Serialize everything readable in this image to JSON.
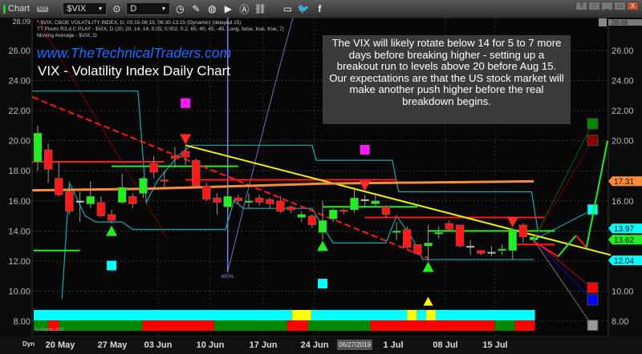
{
  "toolbar": {
    "title": "Chart",
    "badge": "MX",
    "symbol": "$VIX",
    "interval": "D",
    "icons": [
      "link-icon",
      "pencil-icon",
      "chart-style-icon",
      "play-icon",
      "alert-icon",
      "link-chain-icon",
      "chat-icon",
      "twitter-icon",
      "facebook-icon"
    ]
  },
  "window_buttons": [
    "?",
    "□",
    "_",
    "▭",
    "X"
  ],
  "legend": {
    "line1": "* $VIX, CBOE VOLATILITY INDEX, D, 00:15-06:15, 08:30-13:15 (Dynamic) (delayed 15)",
    "line2": "TT Pivots R3.d.C PLAY - $VIX, D (20, 20, 14, 14, 0.05, 0.002, 0.2, 65, 40, 45, -45, Long, false, true, true, 7)",
    "line3": "Moving Average - $VIX, D"
  },
  "website": "www.TheTechnicalTraders.com",
  "chart_title": "VIX - Volatility Index Daily Chart",
  "note": "The VIX will likely rotate below 14 for 5 to 7 more days before breaking higher - setting up a breakout run to levels above 20 before Aug 15.  Our expectations are that the US stock market will make another push higher before the real breakdown begins.",
  "copyright": "© eSignal, 2019",
  "time_axis": {
    "dyn_label": "Dyn",
    "cursor_date": "06/27/2019",
    "ticks": [
      "20 May",
      "27 May",
      "03 Jun",
      "10 Jun",
      "17 Jun",
      "24 Jun",
      "1 Jul",
      "08 Jul",
      "15 Jul"
    ]
  },
  "colors": {
    "up": "#22ee22",
    "down": "#ff1a1a",
    "trend_yellow": "#f2f200",
    "ma_orange": "#ff8c3a",
    "cyan": "#00ffff",
    "pivot_line": "#1fa9b0"
  },
  "chart_data": {
    "type": "candlestick",
    "ylim": [
      7.2,
      28.09
    ],
    "y_ticks": [
      8,
      10,
      12,
      14,
      16,
      18,
      20,
      22,
      24,
      26
    ],
    "y_tick_labels": [
      "8.00",
      "10.00",
      "12.00",
      "14.00",
      "16.00",
      "18.00",
      "20.00",
      "22.00",
      "24.00",
      "26.00"
    ],
    "top_price_label": "28.09",
    "ohlc": [
      [
        18.6,
        21.0,
        18.0,
        20.5
      ],
      [
        19.4,
        19.8,
        17.2,
        18.1
      ],
      [
        17.5,
        18.6,
        16.3,
        16.4
      ],
      [
        16.6,
        17.0,
        15.1,
        15.3
      ],
      [
        16.0,
        16.6,
        14.6,
        16.0
      ],
      [
        15.8,
        17.3,
        15.5,
        16.3
      ],
      [
        15.9,
        16.3,
        14.9,
        15.0
      ],
      [
        15.1,
        15.4,
        14.5,
        14.7
      ],
      [
        15.9,
        17.8,
        15.8,
        16.9
      ],
      [
        16.3,
        16.5,
        15.5,
        15.8
      ],
      [
        16.5,
        17.6,
        16.2,
        17.5
      ],
      [
        18.5,
        19.0,
        17.5,
        17.9
      ],
      [
        17.4,
        18.0,
        16.9,
        17.3
      ],
      [
        19.0,
        19.6,
        18.2,
        18.8
      ],
      [
        19.3,
        19.6,
        18.4,
        18.9
      ],
      [
        18.7,
        18.8,
        16.9,
        17.0
      ],
      [
        17.0,
        17.2,
        16.0,
        16.1
      ],
      [
        16.2,
        16.5,
        15.1,
        15.9
      ],
      [
        15.6,
        16.4,
        15.3,
        16.3
      ],
      [
        16.2,
        16.4,
        15.8,
        16.0
      ],
      [
        15.9,
        16.5,
        15.5,
        16.0
      ],
      [
        16.2,
        16.4,
        15.7,
        15.9
      ],
      [
        16.1,
        16.2,
        15.5,
        15.8
      ],
      [
        16.0,
        16.3,
        15.2,
        15.3
      ],
      [
        15.6,
        15.7,
        15.2,
        15.4
      ],
      [
        14.9,
        15.3,
        14.6,
        15.1
      ],
      [
        15.0,
        15.1,
        14.2,
        14.4
      ],
      [
        13.9,
        16.0,
        13.4,
        14.7
      ],
      [
        14.8,
        15.5,
        14.6,
        15.4
      ],
      [
        15.4,
        15.5,
        15.1,
        15.3
      ],
      [
        15.4,
        16.9,
        15.2,
        16.2
      ],
      [
        16.1,
        16.4,
        15.6,
        16.1
      ],
      [
        15.8,
        16.4,
        15.6,
        16.0
      ],
      [
        15.6,
        15.7,
        14.9,
        15.1
      ],
      [
        13.9,
        14.6,
        13.4,
        14.0
      ],
      [
        14.1,
        14.3,
        12.8,
        12.9
      ],
      [
        13.1,
        13.1,
        12.4,
        12.5
      ],
      [
        13.0,
        14.4,
        12.0,
        13.2
      ],
      [
        13.8,
        14.3,
        13.5,
        13.9
      ],
      [
        14.5,
        14.7,
        14.0,
        14.1
      ],
      [
        14.4,
        14.4,
        12.9,
        13.0
      ],
      [
        13.0,
        13.4,
        12.4,
        13.0
      ],
      [
        12.7,
        12.7,
        12.4,
        12.5
      ],
      [
        12.6,
        13.0,
        12.3,
        12.6
      ],
      [
        12.7,
        13.1,
        12.4,
        12.8
      ],
      [
        12.7,
        14.2,
        12.1,
        14.1
      ],
      [
        14.4,
        14.5,
        13.2,
        13.6
      ],
      [
        13.4,
        13.8,
        13.3,
        13.6
      ]
    ],
    "pivot_up_triangles": [
      [
        7,
        14.2
      ],
      [
        27,
        13.2
      ],
      [
        37,
        11.8
      ]
    ],
    "pivot_down_triangles": [
      [
        14,
        19.9
      ],
      [
        31,
        16.8
      ],
      [
        45,
        14.4
      ]
    ],
    "trendlines": [
      {
        "style": "dashed",
        "color": "#ff1a1a",
        "points": [
          [
            -0.5,
            22.9
          ],
          [
            37,
            12.2
          ]
        ]
      },
      {
        "style": "solid",
        "color": "#f2f200",
        "points": [
          [
            14,
            19.7
          ],
          [
            54.3,
            12.4
          ]
        ]
      },
      {
        "style": "ma",
        "color": "#ff8c3a",
        "points": [
          [
            -0.5,
            16.7
          ],
          [
            10,
            16.8
          ],
          [
            20,
            17.0
          ],
          [
            27,
            17.15
          ],
          [
            47,
            17.3
          ]
        ]
      }
    ],
    "levels": [
      {
        "color": "#ff1a1a",
        "price": 18.6,
        "from": -0.5,
        "to": 12
      },
      {
        "color": "#22ee22",
        "price": 18.3,
        "from": 7,
        "to": 19
      },
      {
        "color": "#ff1a1a",
        "price": 17.4,
        "from": 14,
        "to": 34
      },
      {
        "color": "#22ee22",
        "price": 15.6,
        "from": 27,
        "to": 36
      },
      {
        "color": "#ff1a1a",
        "price": 14.9,
        "from": 31,
        "to": 48
      },
      {
        "color": "#22ee22",
        "price": 14.0,
        "from": 37,
        "to": 49
      },
      {
        "color": "#ff1a1a",
        "price": 13.1,
        "from": 45,
        "to": 49
      },
      {
        "color": "#22ee22",
        "price": 12.7,
        "from": -0.4,
        "to": 4
      }
    ],
    "pivot_bands": [
      [
        [
          -0.5,
          23.3
        ],
        [
          9.5,
          23.3
        ],
        [
          10.3,
          15.9
        ],
        [
          11.3,
          17.3
        ],
        [
          13.3,
          19.0
        ],
        [
          14.6,
          19.7
        ],
        [
          26,
          19.7
        ],
        [
          26.4,
          18.7
        ],
        [
          33.6,
          18.7
        ],
        [
          34.2,
          16.6
        ],
        [
          46.8,
          16.6
        ],
        [
          47.4,
          14.0
        ]
      ],
      [
        [
          2.3,
          9.5
        ],
        [
          3,
          17.2
        ],
        [
          4.5,
          15.0
        ],
        [
          5.5,
          14.6
        ],
        [
          8,
          14.6
        ],
        [
          9,
          14.1
        ],
        [
          17.8,
          14.1
        ],
        [
          18.6,
          16.0
        ],
        [
          19.5,
          15.5
        ],
        [
          26,
          15.5
        ],
        [
          27,
          14.3
        ],
        [
          28,
          13.2
        ],
        [
          33,
          13.2
        ],
        [
          34,
          15.0
        ],
        [
          35.5,
          13.5
        ],
        [
          36.5,
          12.1
        ],
        [
          47,
          12.1
        ]
      ]
    ],
    "signal_markers": [
      {
        "shape": "square",
        "color": "#ff1aff",
        "idx": 14,
        "price": 22.5
      },
      {
        "shape": "square",
        "color": "#ff1aff",
        "idx": 31,
        "price": 19.4
      },
      {
        "shape": "square",
        "color": "#00ffff",
        "idx": 7,
        "price": 11.7
      },
      {
        "shape": "square",
        "color": "#00ffff",
        "idx": 27,
        "price": 10.5
      },
      {
        "shape": "triangle",
        "color": "#ffff00",
        "idx": 37,
        "price": 9.3
      }
    ],
    "projection_targets": [
      {
        "color": "#008800",
        "price": 21.1
      },
      {
        "color": "#880000",
        "price": 20.0
      },
      {
        "color": "#00ffff",
        "price": 15.4
      },
      {
        "color": "#ff0000",
        "price": 10.2
      },
      {
        "color": "#0000ff",
        "price": 9.4
      },
      {
        "color": "#999999",
        "price": 7.7
      }
    ],
    "projection_path": [
      [
        47,
        13.3
      ],
      [
        49.3,
        12.3
      ],
      [
        51,
        13.7
      ],
      [
        52,
        12.9
      ],
      [
        54,
        20.0
      ]
    ],
    "vertical_marker": {
      "idx": 18,
      "label": "600%"
    },
    "price_tags": [
      {
        "label": "17.31",
        "price": 17.31,
        "color": "#ff8c3a"
      },
      {
        "label": "13.97",
        "price": 13.97,
        "color": "#00ffff"
      },
      {
        "label": "13.62",
        "price": 13.62,
        "color": "#22ee22"
      },
      {
        "label": "12.04",
        "price": 12.04,
        "color": "#00ffff"
      }
    ],
    "state_bar_top": [
      [
        "cyan",
        0,
        24.5
      ],
      [
        "yellow",
        24.5,
        26.3
      ],
      [
        "cyan",
        26.3,
        35.4
      ],
      [
        "yellow",
        35.4,
        36.3
      ],
      [
        "cyan",
        36.3,
        37.2
      ],
      [
        "yellow",
        37.2,
        38.1
      ],
      [
        "cyan",
        38.1,
        47.5
      ]
    ],
    "state_bar_bottom": [
      [
        "green",
        0,
        1.4
      ],
      [
        "red",
        1.4,
        2.4
      ],
      [
        "green",
        2.4,
        10.3
      ],
      [
        "red",
        10.3,
        17.1
      ],
      [
        "green",
        17.1,
        24
      ],
      [
        "red",
        24,
        26
      ],
      [
        "green",
        26,
        31.9
      ],
      [
        "red",
        31.9,
        43.7
      ],
      [
        "green",
        43.7,
        45.6
      ],
      [
        "red",
        45.6,
        47.5
      ]
    ]
  }
}
